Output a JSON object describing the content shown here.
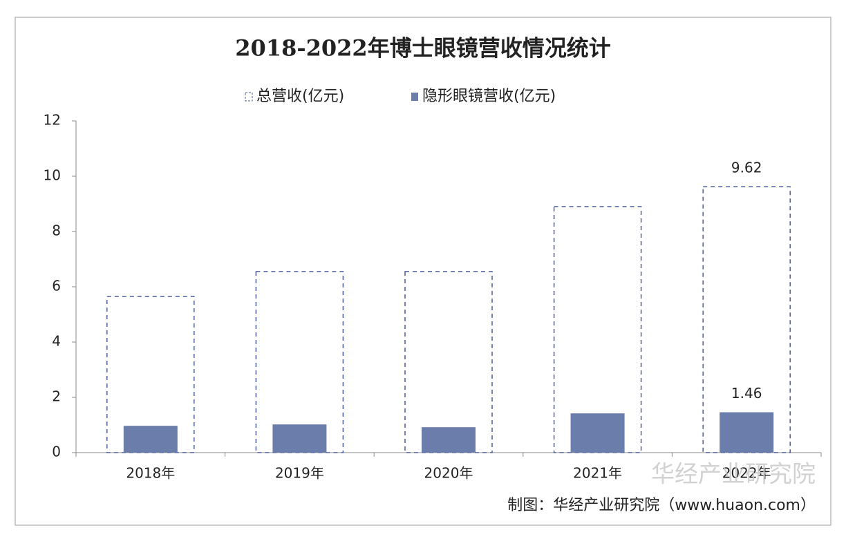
{
  "chart_data": {
    "type": "bar",
    "title": "2018-2022年博士眼镜营收情况统计",
    "categories": [
      "2018年",
      "2019年",
      "2020年",
      "2021年",
      "2022年"
    ],
    "series": [
      {
        "name": "总营收(亿元)",
        "color": "#4a5a9a",
        "style": "dashed-outline",
        "values": [
          5.65,
          6.55,
          6.55,
          8.9,
          9.62
        ],
        "show_value_labels": [
          false,
          false,
          false,
          false,
          true
        ]
      },
      {
        "name": "隐形眼镜营收(亿元)",
        "color": "#6a7dab",
        "style": "filled",
        "values": [
          0.97,
          1.02,
          0.92,
          1.42,
          1.46
        ],
        "show_value_labels": [
          false,
          false,
          false,
          false,
          true
        ]
      }
    ],
    "ylim": [
      0,
      12
    ],
    "yticks": [
      0,
      2,
      4,
      6,
      8,
      10,
      12
    ],
    "grid": false,
    "legend": "top",
    "watermark": "华经产业研究院",
    "source": "制图：华经产业研究院（www.huaon.com）"
  }
}
